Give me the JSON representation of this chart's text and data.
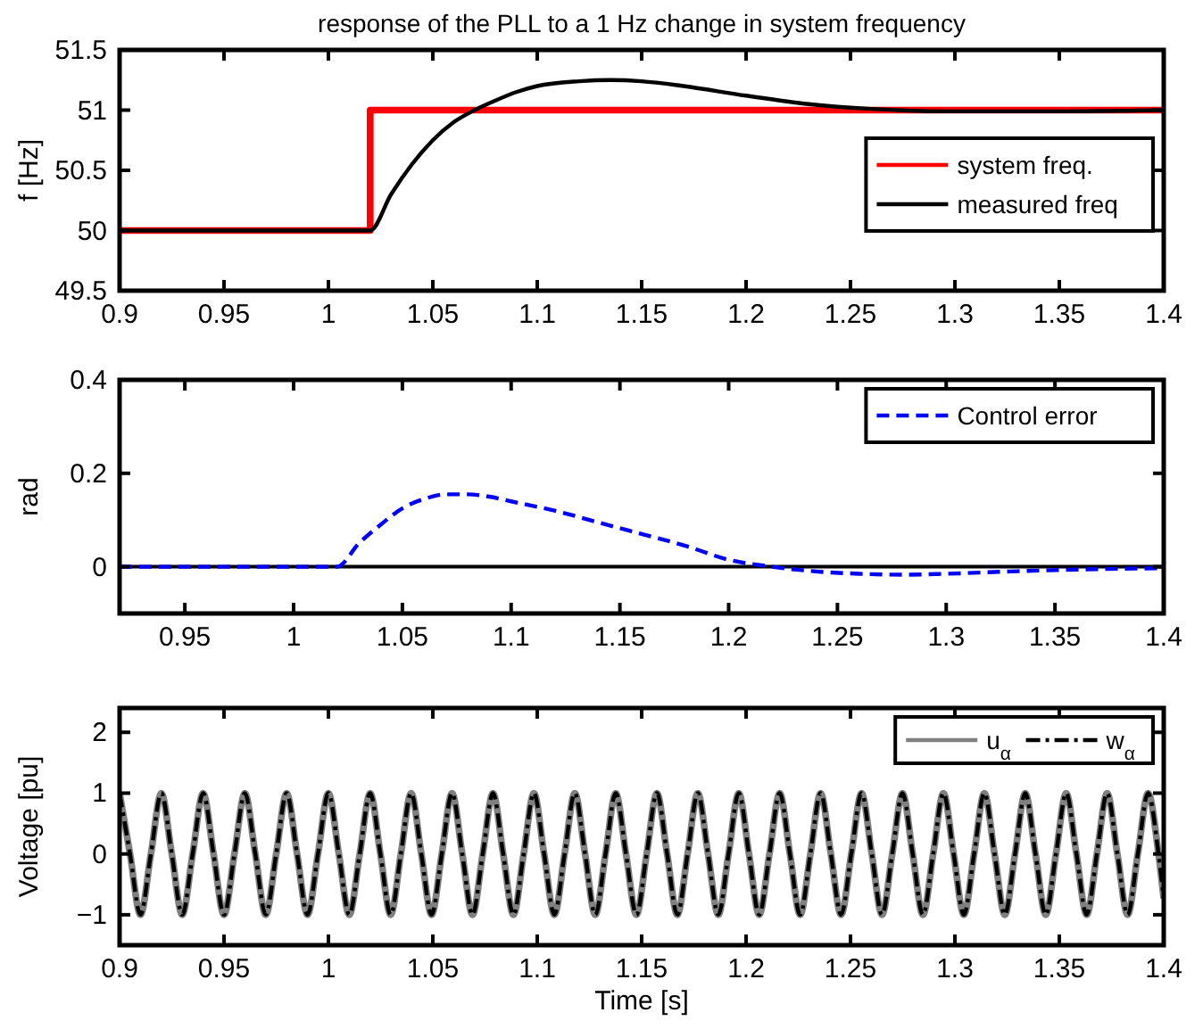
{
  "chart_data": [
    {
      "type": "line",
      "title": "response of the PLL to a 1 Hz change in system frequency",
      "ylabel": "f [Hz]",
      "xlim": [
        0.9,
        1.4
      ],
      "xticks": [
        0.9,
        0.95,
        1,
        1.05,
        1.1,
        1.15,
        1.2,
        1.25,
        1.3,
        1.35,
        1.4
      ],
      "ylim": [
        49.5,
        51.5
      ],
      "yticks": [
        49.5,
        50,
        50.5,
        51,
        51.5
      ],
      "grid": false,
      "legend": "right",
      "line_style": "solid",
      "series": [
        {
          "name": "system freq.",
          "color": "#ff0000",
          "x": [
            0.9,
            1.02,
            1.02,
            1.4
          ],
          "values": [
            50,
            50,
            51,
            51
          ]
        },
        {
          "name": "measured freq",
          "color": "#000000",
          "x": [
            0.9,
            1.02,
            1.03,
            1.04,
            1.05,
            1.06,
            1.07,
            1.08,
            1.09,
            1.1,
            1.12,
            1.135,
            1.15,
            1.17,
            1.2,
            1.23,
            1.26,
            1.3,
            1.35,
            1.4
          ],
          "values": [
            50,
            50,
            50.3,
            50.55,
            50.75,
            50.9,
            51.0,
            51.08,
            51.15,
            51.2,
            51.24,
            51.25,
            51.24,
            51.2,
            51.12,
            51.05,
            51.01,
            50.99,
            50.99,
            51.0
          ]
        }
      ]
    },
    {
      "type": "line",
      "ylabel": "rad",
      "xlim": [
        0.92,
        1.4
      ],
      "xticks": [
        0.95,
        1,
        1.05,
        1.1,
        1.15,
        1.2,
        1.25,
        1.3,
        1.35,
        1.4
      ],
      "ylim": [
        -0.1,
        0.4
      ],
      "yticks": [
        0,
        0.2,
        0.4
      ],
      "grid": false,
      "legend": "top right",
      "ref_lines": [
        {
          "axis": "y",
          "value": 0,
          "color": "#000000",
          "line_style": "solid"
        }
      ],
      "series": [
        {
          "name": "Control error",
          "color": "#0000ff",
          "line_style": "dashed",
          "x": [
            0.92,
            1.02,
            1.03,
            1.04,
            1.05,
            1.06,
            1.07,
            1.08,
            1.09,
            1.1,
            1.12,
            1.14,
            1.16,
            1.18,
            1.2,
            1.22,
            1.24,
            1.26,
            1.28,
            1.3,
            1.33,
            1.36,
            1.4
          ],
          "values": [
            0,
            0,
            0.05,
            0.09,
            0.125,
            0.145,
            0.155,
            0.155,
            0.15,
            0.14,
            0.12,
            0.095,
            0.07,
            0.045,
            0.015,
            0,
            -0.01,
            -0.015,
            -0.017,
            -0.015,
            -0.01,
            -0.006,
            -0.003
          ]
        }
      ]
    },
    {
      "type": "line",
      "xlabel": "Time [s]",
      "ylabel": "Voltage [pu]",
      "xlim": [
        0.9,
        1.4
      ],
      "xticks": [
        0.9,
        0.95,
        1,
        1.05,
        1.1,
        1.15,
        1.2,
        1.25,
        1.3,
        1.35,
        1.4
      ],
      "ylim": [
        -1.5,
        2.4
      ],
      "yticks": [
        -1,
        0,
        1,
        2
      ],
      "grid": false,
      "legend": "top right",
      "series": [
        {
          "name": "u$_{α}$",
          "color": "#808080",
          "line_style": "solid",
          "x": [
            0.9,
            0.905,
            0.91,
            0.915,
            0.92,
            0.925,
            0.93,
            0.935,
            0.94,
            0.945,
            0.95,
            0.955,
            0.96,
            0.965,
            0.97,
            0.975,
            0.98,
            0.985,
            0.99,
            0.995,
            1.0,
            1.005,
            1.01,
            1.015,
            1.02,
            1.0249,
            1.0298,
            1.0347,
            1.0396,
            1.0445,
            1.0494,
            1.0543,
            1.0592,
            1.0641,
            1.069,
            1.0739,
            1.0788,
            1.0837,
            1.0886,
            1.0935,
            1.0984,
            1.1033,
            1.1082,
            1.1131,
            1.118,
            1.1229,
            1.1278,
            1.1327,
            1.1376,
            1.1425,
            1.1475,
            1.1524,
            1.1573,
            1.1622,
            1.1671,
            1.172,
            1.1769,
            1.1818,
            1.1867,
            1.1916,
            1.1965,
            1.2014,
            1.2063,
            1.2112,
            1.2161,
            1.221,
            1.2259,
            1.2308,
            1.2357,
            1.2406,
            1.2455,
            1.2504,
            1.2553,
            1.2602,
            1.2651,
            1.27,
            1.2749,
            1.2798,
            1.2847,
            1.2896,
            1.2945,
            1.2994,
            1.3043,
            1.3092,
            1.3141,
            1.319,
            1.3239,
            1.3288,
            1.3337,
            1.3386,
            1.3435,
            1.3484,
            1.3533,
            1.3582,
            1.3631,
            1.368,
            1.3729,
            1.3778,
            1.3827,
            1.3876,
            1.3925,
            1.3975,
            1.4
          ],
          "values": [
            1,
            0,
            -1,
            0,
            1,
            0,
            -1,
            0,
            1,
            0,
            -1,
            0,
            1,
            0,
            -1,
            0,
            1,
            0,
            -1,
            0,
            1,
            0,
            -1,
            0,
            1,
            0,
            -1,
            0,
            1,
            0,
            -1,
            0,
            1,
            0,
            -1,
            0,
            1,
            0,
            -1,
            0,
            1,
            0,
            -1,
            0,
            1,
            0,
            -1,
            0,
            1,
            0,
            -1,
            0,
            1,
            0,
            -1,
            0,
            1,
            0,
            -1,
            0,
            1,
            0,
            -1,
            0,
            1,
            0,
            -1,
            0,
            1,
            0,
            -1,
            0,
            1,
            0,
            -1,
            0,
            1,
            0,
            -1,
            0,
            1,
            0,
            -1,
            0,
            1,
            0,
            -1,
            0,
            1,
            0,
            -1,
            0,
            1,
            0,
            -1,
            0,
            1,
            0,
            -1,
            0,
            1,
            0,
            -0.73
          ]
        },
        {
          "name": "w$_{α}$",
          "color": "#000000",
          "line_style": "dashdot",
          "x": [
            0.9,
            0.905,
            0.91,
            0.915,
            0.92,
            0.925,
            0.93,
            0.935,
            0.94,
            0.945,
            0.95,
            0.955,
            0.96,
            0.965,
            0.97,
            0.975,
            0.98,
            0.985,
            0.99,
            0.995,
            1.0,
            1.005,
            1.01,
            1.015,
            1.02,
            1.0249,
            1.0298,
            1.0347,
            1.0396,
            1.0445,
            1.0494,
            1.0543,
            1.0592,
            1.0641,
            1.069,
            1.0739,
            1.0788,
            1.0837,
            1.0886,
            1.0935,
            1.0984,
            1.1033,
            1.1082,
            1.1131,
            1.118,
            1.1229,
            1.1278,
            1.1327,
            1.1376,
            1.1425,
            1.1475,
            1.1524,
            1.1573,
            1.1622,
            1.1671,
            1.172,
            1.1769,
            1.1818,
            1.1867,
            1.1916,
            1.1965,
            1.2014,
            1.2063,
            1.2112,
            1.2161,
            1.221,
            1.2259,
            1.2308,
            1.2357,
            1.2406,
            1.2455,
            1.2504,
            1.2553,
            1.2602,
            1.2651,
            1.27,
            1.2749,
            1.2798,
            1.2847,
            1.2896,
            1.2945,
            1.2994,
            1.3043,
            1.3092,
            1.3141,
            1.319,
            1.3239,
            1.3288,
            1.3337,
            1.3386,
            1.3435,
            1.3484,
            1.3533,
            1.3582,
            1.3631,
            1.368,
            1.3729,
            1.3778,
            1.3827,
            1.3876,
            1.3925,
            1.3975,
            1.4
          ],
          "values": [
            1,
            0,
            -1,
            0,
            1,
            0,
            -1,
            0,
            1,
            0,
            -1,
            0,
            1,
            0,
            -1,
            0,
            1,
            0,
            -1,
            0,
            1,
            0,
            -1,
            0,
            1,
            0,
            -1,
            0,
            1,
            0,
            -1,
            0,
            1,
            0,
            -1,
            0,
            1,
            0,
            -1,
            0,
            1,
            0,
            -1,
            0,
            1,
            0,
            -1,
            0,
            1,
            0,
            -1,
            0,
            1,
            0,
            -1,
            0,
            1,
            0,
            -1,
            0,
            1,
            0,
            -1,
            0,
            1,
            0,
            -1,
            0,
            1,
            0,
            -1,
            0,
            1,
            0,
            -1,
            0,
            1,
            0,
            -1,
            0,
            1,
            0,
            -1,
            0,
            1,
            0,
            -1,
            0,
            1,
            0,
            -1,
            0,
            1,
            0,
            -1,
            0,
            1,
            0,
            -1,
            0,
            1,
            0,
            -0.73
          ]
        }
      ]
    }
  ]
}
